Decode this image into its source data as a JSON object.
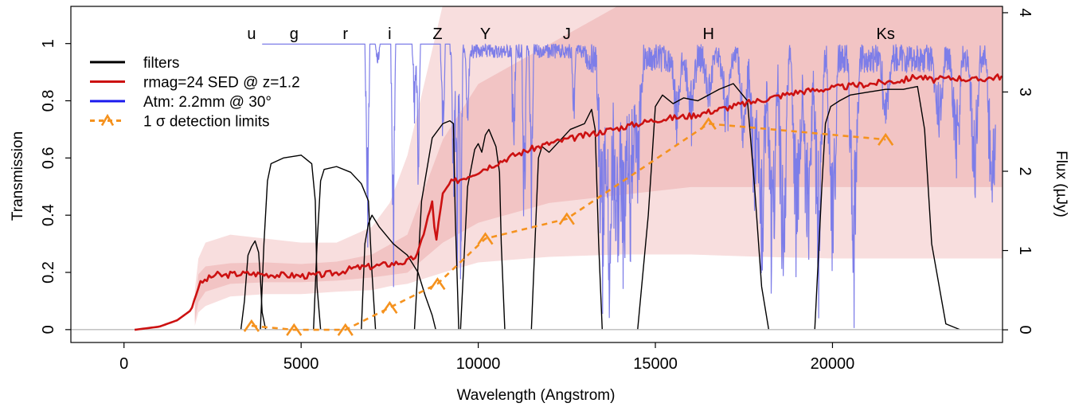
{
  "chart_data": {
    "type": "line",
    "xlabel": "Wavelength (Angstrom)",
    "ylabel": "Transmission",
    "y2label": "Flux (µJy)",
    "xlim": [
      -1500,
      24800
    ],
    "ylim": [
      -0.045,
      1.13
    ],
    "y2lim": [
      -0.16,
      4.08
    ],
    "x_ticks": [
      0,
      5000,
      10000,
      15000,
      20000
    ],
    "y_ticks": [
      0,
      0.2,
      0.4,
      0.6,
      0.8,
      1
    ],
    "y2_ticks": [
      0,
      1,
      2,
      3,
      4
    ],
    "legend": {
      "position": "top-left",
      "entries": [
        {
          "label": "filters",
          "color": "#000000",
          "style": "solid"
        },
        {
          "label": "rmag=24 SED @ z=1.2",
          "color": "#cc1111",
          "style": "solid"
        },
        {
          "label": "Atm: 2.2mm @ 30°",
          "color": "#1a1aee",
          "style": "solid"
        },
        {
          "label": "1 σ detection limits",
          "color": "#f5921e",
          "style": "dashed",
          "marker": "caret"
        }
      ]
    },
    "colors": {
      "filter": "#000000",
      "sed": "#cc1111",
      "atm": "#7d7de8",
      "limits": "#f5921e",
      "band_outer": "#f8dede",
      "band_inner": "#f2c4c4",
      "zero_line": "#bbbbbb"
    },
    "filters": [
      {
        "name": "u",
        "x": [
          3300,
          3400,
          3500,
          3600,
          3700,
          3800,
          3850,
          3900,
          4000
        ],
        "y": [
          0,
          0.1,
          0.26,
          0.29,
          0.31,
          0.27,
          0.18,
          0.06,
          0
        ]
      },
      {
        "name": "g",
        "x": [
          3850,
          3950,
          4050,
          4150,
          4500,
          5000,
          5300,
          5400,
          5450,
          5550
        ],
        "y": [
          0,
          0.3,
          0.52,
          0.58,
          0.6,
          0.61,
          0.58,
          0.45,
          0.15,
          0
        ]
      },
      {
        "name": "r",
        "x": [
          5350,
          5450,
          5550,
          5650,
          6000,
          6400,
          6700,
          6900,
          7000,
          7100
        ],
        "y": [
          0,
          0.3,
          0.52,
          0.56,
          0.57,
          0.55,
          0.51,
          0.45,
          0.2,
          0
        ]
      },
      {
        "name": "i",
        "x": [
          6700,
          6800,
          6900,
          7000,
          7200,
          7600,
          8000,
          8300,
          8500,
          8700,
          8800
        ],
        "y": [
          0,
          0.3,
          0.37,
          0.4,
          0.36,
          0.3,
          0.26,
          0.2,
          0.12,
          0.05,
          0
        ]
      },
      {
        "name": "Z",
        "x": [
          8200,
          8400,
          8700,
          9000,
          9200,
          9300,
          9350,
          9450
        ],
        "y": [
          0,
          0.45,
          0.67,
          0.72,
          0.73,
          0.72,
          0.4,
          0
        ]
      },
      {
        "name": "Y",
        "x": [
          9500,
          9700,
          9900,
          10000,
          10100,
          10200,
          10300,
          10500,
          10600,
          10650,
          10750
        ],
        "y": [
          0,
          0.5,
          0.63,
          0.65,
          0.62,
          0.68,
          0.7,
          0.64,
          0.55,
          0.3,
          0
        ]
      },
      {
        "name": "J",
        "x": [
          11500,
          11700,
          11800,
          12000,
          12300,
          12600,
          13000,
          13200,
          13300,
          13400,
          13500
        ],
        "y": [
          0,
          0.6,
          0.64,
          0.62,
          0.66,
          0.7,
          0.72,
          0.77,
          0.7,
          0.3,
          0
        ]
      },
      {
        "name": "H",
        "x": [
          14500,
          14800,
          15000,
          15200,
          15500,
          15800,
          16200,
          16800,
          17200,
          17600,
          17800,
          18000,
          18200
        ],
        "y": [
          0,
          0.4,
          0.78,
          0.82,
          0.79,
          0.81,
          0.8,
          0.84,
          0.86,
          0.8,
          0.5,
          0.15,
          0
        ]
      },
      {
        "name": "Ks",
        "x": [
          19500,
          19700,
          19800,
          19950,
          20200,
          20500,
          21000,
          21500,
          22000,
          22400,
          22600,
          22800,
          23200,
          23600
        ],
        "y": [
          0,
          0.5,
          0.72,
          0.78,
          0.8,
          0.82,
          0.83,
          0.84,
          0.84,
          0.85,
          0.7,
          0.3,
          0.02,
          0
        ]
      }
    ],
    "filter_labels": [
      {
        "name": "u",
        "x": 3600
      },
      {
        "name": "g",
        "x": 4800
      },
      {
        "name": "r",
        "x": 6250
      },
      {
        "name": "i",
        "x": 7500
      },
      {
        "name": "Z",
        "x": 8850
      },
      {
        "name": "Y",
        "x": 10200
      },
      {
        "name": "J",
        "x": 12500
      },
      {
        "name": "H",
        "x": 16500
      },
      {
        "name": "Ks",
        "x": 21500
      }
    ],
    "sed": {
      "name": "rmag=24 SED @ z=1.2",
      "x": [
        300,
        1000,
        1500,
        1900,
        2100,
        2200,
        2400,
        2600,
        2800,
        3000,
        3500,
        4000,
        4500,
        5000,
        5500,
        6000,
        6500,
        7000,
        7500,
        8000,
        8300,
        8500,
        8700,
        8800,
        8900,
        9000,
        9200,
        9500,
        10000,
        10500,
        11000,
        11500,
        12000,
        12500,
        13000,
        13500,
        14000,
        14500,
        15000,
        16000,
        17000,
        18000,
        19000,
        20000,
        21000,
        22000,
        22400,
        22800,
        23500,
        24000,
        24800
      ],
      "y": [
        0,
        0.04,
        0.12,
        0.25,
        0.55,
        0.6,
        0.65,
        0.7,
        0.68,
        0.7,
        0.71,
        0.7,
        0.69,
        0.68,
        0.69,
        0.72,
        0.78,
        0.8,
        0.83,
        0.86,
        0.95,
        1.3,
        1.6,
        1.1,
        1.4,
        1.7,
        1.85,
        1.9,
        2.0,
        2.1,
        2.2,
        2.28,
        2.35,
        2.4,
        2.45,
        2.5,
        2.55,
        2.6,
        2.65,
        2.7,
        2.8,
        2.9,
        3.0,
        3.05,
        3.1,
        3.15,
        3.2,
        3.15,
        3.18,
        3.15,
        3.2
      ]
    },
    "detection_limits": {
      "name": "1 σ detection limits",
      "x": [
        3600,
        4800,
        6250,
        7500,
        8850,
        10200,
        12500,
        16500,
        21500
      ],
      "y": [
        0.05,
        0.0,
        0.0,
        0.28,
        0.58,
        1.15,
        1.4,
        2.6,
        2.4
      ]
    },
    "band_inner": {
      "x": [
        2000,
        2100,
        2300,
        3000,
        4000,
        5000,
        6000,
        7000,
        8000,
        9000,
        10000,
        12000,
        14000,
        15000,
        16000,
        18000,
        20000,
        22000,
        24800
      ],
      "lower": [
        0.1,
        0.35,
        0.48,
        0.58,
        0.6,
        0.6,
        0.62,
        0.66,
        0.72,
        1.1,
        1.35,
        1.6,
        1.7,
        1.75,
        1.8,
        1.8,
        1.8,
        1.8,
        1.8
      ],
      "upper": [
        0.3,
        0.7,
        0.8,
        0.84,
        0.85,
        0.83,
        0.86,
        0.95,
        1.2,
        2.4,
        3.1,
        3.6,
        4.1,
        4.1,
        4.1,
        4.1,
        4.1,
        4.1,
        4.1
      ]
    },
    "band_outer": {
      "x": [
        2000,
        2100,
        2300,
        3000,
        4000,
        5000,
        6000,
        7000,
        7500,
        8000,
        9000,
        10000,
        12000,
        14000,
        15000,
        16000,
        18000,
        20000,
        22000,
        24800
      ],
      "lower": [
        0.05,
        0.22,
        0.3,
        0.42,
        0.45,
        0.45,
        0.48,
        0.5,
        0.55,
        0.58,
        0.72,
        0.85,
        0.92,
        0.95,
        0.95,
        0.95,
        0.92,
        0.9,
        0.9,
        0.9
      ],
      "upper": [
        0.5,
        0.9,
        1.1,
        1.2,
        1.15,
        1.1,
        1.1,
        1.3,
        1.6,
        2.2,
        4.1,
        4.1,
        4.1,
        4.1,
        4.1,
        4.1,
        4.1,
        4.1,
        4.1,
        4.1
      ]
    },
    "atmosphere": {
      "name": "Atm: 2.2mm @ 30°",
      "x_start": 3900,
      "x_end": 24600,
      "level": 0.998,
      "absorption_features": [
        {
          "x": 6870,
          "depth": 0.9
        },
        {
          "x": 7160,
          "depth": 0.1
        },
        {
          "x": 7600,
          "depth": 1.0
        },
        {
          "x": 8200,
          "depth": 0.3
        },
        {
          "x": 8300,
          "depth": 0.62
        },
        {
          "x": 9000,
          "depth": 0.45
        },
        {
          "x": 9300,
          "depth": 0.6
        },
        {
          "x": 9400,
          "depth": 1.0
        },
        {
          "x": 9500,
          "depth": 0.95
        },
        {
          "x": 9700,
          "depth": 0.3
        },
        {
          "x": 11000,
          "depth": 0.55
        },
        {
          "x": 11300,
          "depth": 1.0
        },
        {
          "x": 11500,
          "depth": 0.7
        },
        {
          "x": 12700,
          "depth": 0.3
        },
        {
          "x": 13500,
          "depth": 1.0
        },
        {
          "x": 13700,
          "depth": 1.0
        },
        {
          "x": 13900,
          "depth": 1.0
        },
        {
          "x": 14100,
          "depth": 0.95
        },
        {
          "x": 14300,
          "depth": 0.8
        },
        {
          "x": 14500,
          "depth": 0.55
        },
        {
          "x": 15600,
          "depth": 0.3
        },
        {
          "x": 16000,
          "depth": 0.35
        },
        {
          "x": 16500,
          "depth": 0.2
        },
        {
          "x": 17000,
          "depth": 0.3
        },
        {
          "x": 17500,
          "depth": 0.45
        },
        {
          "x": 17800,
          "depth": 0.6
        },
        {
          "x": 18000,
          "depth": 1.0
        },
        {
          "x": 18300,
          "depth": 1.0
        },
        {
          "x": 18600,
          "depth": 1.0
        },
        {
          "x": 19000,
          "depth": 1.0
        },
        {
          "x": 19300,
          "depth": 1.0
        },
        {
          "x": 19600,
          "depth": 0.95
        },
        {
          "x": 20000,
          "depth": 0.9
        },
        {
          "x": 20600,
          "depth": 1.0
        },
        {
          "x": 21500,
          "depth": 0.3
        },
        {
          "x": 23000,
          "depth": 0.35
        },
        {
          "x": 23500,
          "depth": 0.5
        },
        {
          "x": 24000,
          "depth": 0.6
        },
        {
          "x": 24500,
          "depth": 0.8
        }
      ]
    }
  }
}
